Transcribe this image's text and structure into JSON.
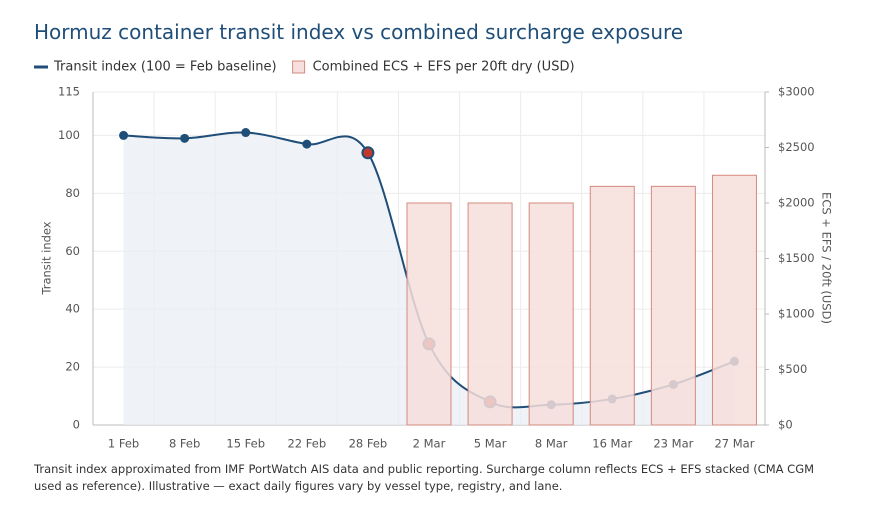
{
  "chart_data": {
    "type": "combo",
    "title": "Hormuz container transit index vs combined surcharge exposure",
    "categories": [
      "1 Feb",
      "8 Feb",
      "15 Feb",
      "22 Feb",
      "28 Feb",
      "2 Mar",
      "5 Mar",
      "8 Mar",
      "16 Mar",
      "23 Mar",
      "27 Mar"
    ],
    "series": [
      {
        "name": "Transit index (100 = Feb baseline)",
        "type": "line",
        "axis": "y",
        "color": "#1f4e79",
        "area_color": "#e9eef3",
        "point_colors": [
          "#1f4e79",
          "#1f4e79",
          "#1f4e79",
          "#1f4e79",
          "#c0392b",
          "#c0392b",
          "#c0392b",
          "#1f4e79",
          "#1f4e79",
          "#1f4e79",
          "#1f4e79"
        ],
        "values": [
          100,
          99,
          101,
          97,
          94,
          28,
          8,
          7,
          9,
          14,
          22
        ]
      },
      {
        "name": "Combined ECS + EFS per 20ft dry (USD)",
        "type": "bar",
        "axis": "y2",
        "color": "#f6dfdc",
        "edge_color": "#d4897f",
        "values": [
          null,
          null,
          null,
          null,
          null,
          2000,
          2000,
          2000,
          2150,
          2150,
          2250
        ]
      }
    ],
    "ylabel": "Transit index",
    "y2label": "ECS + EFS / 20ft (USD)",
    "ylim": [
      0,
      115
    ],
    "yticks": [
      0,
      20,
      40,
      60,
      80,
      100,
      115
    ],
    "y2lim": [
      0,
      3000
    ],
    "y2ticks": [
      {
        "value": 0,
        "label": "$0"
      },
      {
        "value": 500,
        "label": "$500"
      },
      {
        "value": 1000,
        "label": "$1000"
      },
      {
        "value": 1500,
        "label": "$1500"
      },
      {
        "value": 2000,
        "label": "$2000"
      },
      {
        "value": 2500,
        "label": "$2500"
      },
      {
        "value": 3000,
        "label": "$3000"
      }
    ],
    "grid": true,
    "footnote": "Transit index approximated from IMF PortWatch AIS data and public reporting. Surcharge column reflects ECS + EFS stacked (CMA CGM used as reference). Illustrative — exact daily figures vary by vessel type, registry, and lane."
  }
}
